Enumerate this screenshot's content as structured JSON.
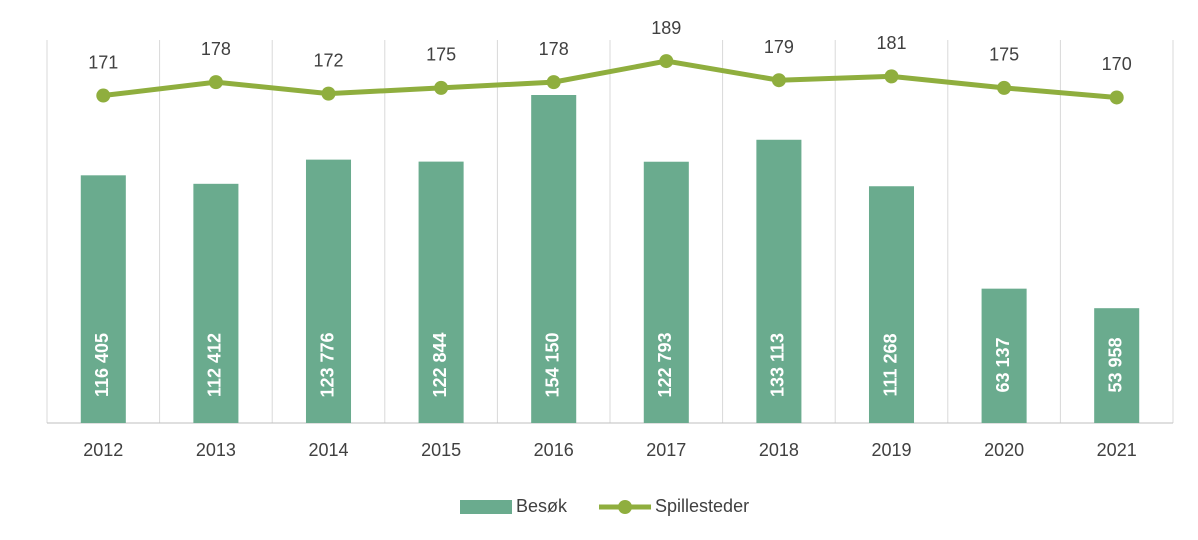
{
  "chart_data": {
    "type": "bar",
    "categories": [
      "2012",
      "2013",
      "2014",
      "2015",
      "2016",
      "2017",
      "2018",
      "2019",
      "2020",
      "2021"
    ],
    "series": [
      {
        "name": "Besøk",
        "type": "bar",
        "axis": "y",
        "color": "#6aab8e",
        "values": [
          116405,
          112412,
          123776,
          122844,
          154150,
          122793,
          133113,
          111268,
          63137,
          53958
        ],
        "value_labels": [
          "116 405",
          "112 412",
          "123 776",
          "122 844",
          "154 150",
          "122 793",
          "133 113",
          "111 268",
          "63 137",
          "53 958"
        ]
      },
      {
        "name": "Spillesteder",
        "type": "line",
        "axis": "y2",
        "color": "#8fae3e",
        "values": [
          171,
          178,
          172,
          175,
          178,
          189,
          179,
          181,
          175,
          170
        ]
      }
    ],
    "ylim": [
      0,
      180000
    ],
    "y2lim": [
      0,
      200
    ],
    "grid": true,
    "legend": "bottom"
  }
}
